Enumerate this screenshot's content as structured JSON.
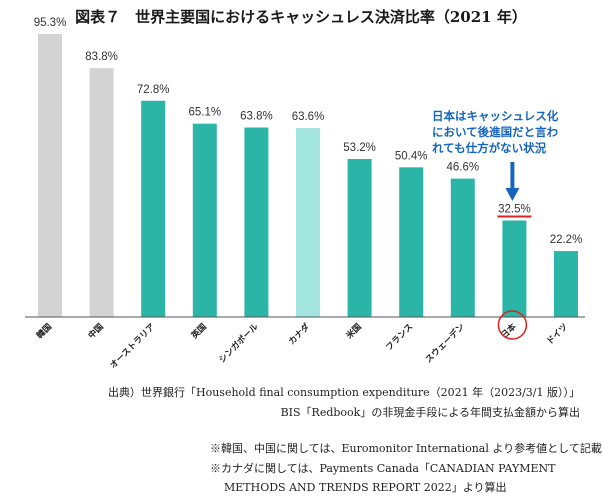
{
  "chart_data": {
    "type": "bar",
    "title": "図表７　世界主要国におけるキャッシュレス決済比率（2021 年）",
    "categories": [
      "韓国",
      "中国",
      "オーストラリア",
      "英国",
      "シンガポール",
      "カナダ",
      "米国",
      "フランス",
      "スウェーデン",
      "日本",
      "ドイツ"
    ],
    "values": [
      95.3,
      83.8,
      72.8,
      65.1,
      63.8,
      63.6,
      53.2,
      50.4,
      46.6,
      32.5,
      22.2
    ],
    "value_labels": [
      "95.3%",
      "83.8%",
      "72.8%",
      "65.1%",
      "63.8%",
      "63.6%",
      "53.2%",
      "50.4%",
      "46.6%",
      "32.5%",
      "22.2%"
    ],
    "bar_colors": [
      "#d3d3d3",
      "#d3d3d3",
      "#2bb5a6",
      "#2bb5a6",
      "#2bb5a6",
      "#a3e6df",
      "#2bb5a6",
      "#2bb5a6",
      "#2bb5a6",
      "#2bb5a6",
      "#2bb5a6"
    ],
    "ylim": [
      0,
      100
    ],
    "grid": false,
    "highlight": {
      "category": "日本",
      "underline_color": "#e02020",
      "circle_color": "#e02020",
      "arrow_color": "#1565c0",
      "callout_lines": [
        "日本はキャッシュレス化",
        "において後進国だと言わ",
        "れても仕方がない状況"
      ]
    }
  },
  "source": {
    "line1": "出典）世界銀行「Household final consumption expenditure（2021 年（2023/3/1 版））」",
    "line2": "BIS「Redbook」の非現金手段による年間支払金額から算出"
  },
  "notes": {
    "line1": "※韓国、中国に関しては、Euromonitor International より参考値として記載",
    "line2": "※カナダに関しては、Payments Canada「CANADIAN PAYMENT",
    "line3": "METHODS AND TRENDS REPORT 2022」より算出"
  }
}
